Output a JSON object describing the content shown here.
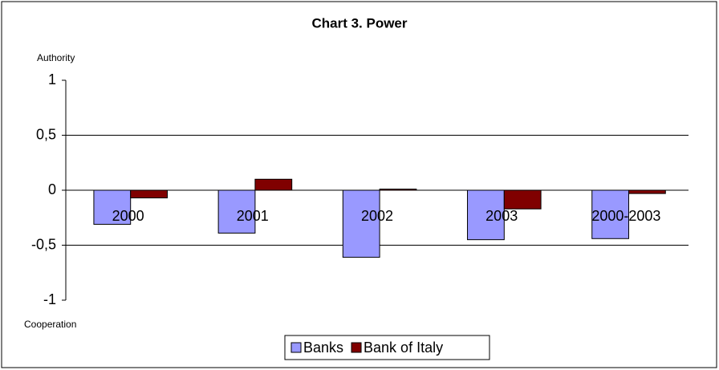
{
  "chart_data": {
    "type": "bar",
    "title": "Chart 3. Power",
    "y_label_top": "Authority",
    "y_label_bottom": "Cooperation",
    "categories": [
      "2000",
      "2001",
      "2002",
      "2003",
      "2000-2003"
    ],
    "series": [
      {
        "name": "Banks",
        "color": "#9999ff",
        "values": [
          -0.31,
          -0.39,
          -0.61,
          -0.45,
          -0.44
        ]
      },
      {
        "name": "Bank of Italy",
        "color": "#800000",
        "values": [
          -0.07,
          0.1,
          0.01,
          -0.17,
          -0.03
        ]
      }
    ],
    "ylim": [
      -1,
      1
    ],
    "yticks": [
      -1,
      {
        "value": -0.5,
        "label": "-0,5"
      },
      0,
      {
        "value": 0.5,
        "label": "0,5"
      },
      1
    ],
    "grid": true
  }
}
